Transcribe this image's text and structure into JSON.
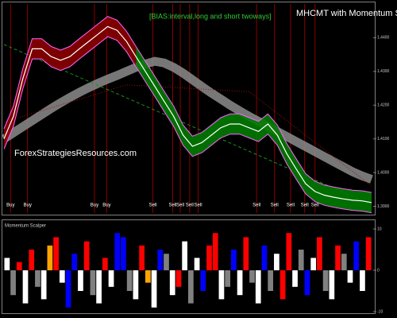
{
  "chart_data": [
    {
      "type": "line",
      "title": "MHCMT with Momentum Scalper",
      "subtitle": "[BIAS:interval,long and short twoways]",
      "watermark": "ForexStrategiesResources.com",
      "ylim": [
        1.388,
        1.45
      ],
      "yticks": [
        {
          "value": 1.39,
          "label": "1.3900"
        },
        {
          "value": 1.4,
          "label": "1.4000"
        },
        {
          "value": 1.41,
          "label": "1.4100"
        },
        {
          "value": 1.42,
          "label": "1.4200"
        },
        {
          "value": 1.43,
          "label": "1.4300"
        },
        {
          "value": 1.44,
          "label": "1.4400"
        }
      ],
      "grid": false,
      "series": [
        {
          "color": "#8c8c8c",
          "style": "band",
          "values": [
            1.41,
            1.4118,
            1.4136,
            1.4154,
            1.4172,
            1.419,
            1.4207,
            1.4223,
            1.4238,
            1.4252,
            1.4265,
            1.4277,
            1.4288,
            1.43,
            1.4312,
            1.4322,
            1.433,
            1.4325,
            1.4312,
            1.4295,
            1.4275,
            1.4255,
            1.4236,
            1.4218,
            1.42,
            1.4183,
            1.4167,
            1.4152,
            1.4137,
            1.4122,
            1.4107,
            1.4092,
            1.4077,
            1.4062,
            1.4047,
            1.4032,
            1.4017,
            1.4002,
            1.399,
            1.398
          ]
        },
        {
          "color": "#1e8c1e",
          "style": "dashed",
          "x": [
            0,
            39
          ],
          "values": [
            1.438,
            1.3905
          ]
        },
        {
          "color": "#a01010",
          "style": "dotted",
          "x": [
            0,
            13,
            26,
            39
          ],
          "values": [
            1.415,
            1.426,
            1.424,
            1.396
          ]
        },
        {
          "color": "#ffffff",
          "style": "solid",
          "values": [
            1.41,
            1.4167,
            1.4278,
            1.4367,
            1.4367,
            1.4344,
            1.4333,
            1.4344,
            1.4367,
            1.4389,
            1.4411,
            1.4433,
            1.4422,
            1.4389,
            1.4344,
            1.43,
            1.4256,
            1.4211,
            1.4167,
            1.4111,
            1.4078,
            1.4089,
            1.4111,
            1.4133,
            1.4144,
            1.4144,
            1.4133,
            1.4122,
            1.4144,
            1.4111,
            1.4056,
            1.4011,
            1.3967,
            1.3944,
            1.3933,
            1.3927,
            1.3922,
            1.3918,
            1.3916,
            1.3911
          ]
        }
      ],
      "ribbons": [
        {
          "color": "#8b0000",
          "edge": "#ff66ff",
          "upper": [
            1.413,
            1.4197,
            1.4308,
            1.4397,
            1.4397,
            1.4374,
            1.4363,
            1.4374,
            1.4397,
            1.4419,
            1.4441,
            1.4463,
            1.4452,
            1.4419,
            1.4374,
            null,
            null,
            null,
            null,
            null,
            null,
            null,
            null,
            null,
            null,
            null,
            null,
            null,
            null,
            null,
            null,
            null,
            null,
            null,
            null,
            null,
            null,
            null,
            null,
            null
          ],
          "lower": [
            1.407,
            1.4137,
            1.4248,
            1.4337,
            1.4337,
            1.4314,
            1.4303,
            1.4314,
            1.4337,
            1.4359,
            1.4381,
            1.4403,
            1.4392,
            1.4359,
            1.4314,
            null,
            null,
            null,
            null,
            null,
            null,
            null,
            null,
            null,
            null,
            null,
            null,
            null,
            null,
            null,
            null,
            null,
            null,
            null,
            null,
            null,
            null,
            null,
            null,
            null
          ]
        },
        {
          "color": "#007a00",
          "edge": "#ff66ff",
          "upper": [
            null,
            null,
            null,
            null,
            null,
            null,
            null,
            null,
            null,
            null,
            null,
            null,
            null,
            null,
            1.4374,
            1.433,
            1.4286,
            1.4241,
            1.4197,
            1.4141,
            1.4108,
            1.4119,
            1.4141,
            1.4163,
            1.4174,
            1.4174,
            1.4163,
            1.4152,
            1.4174,
            1.4141,
            1.4086,
            1.4041,
            1.3997,
            1.3974,
            1.3963,
            1.3957,
            1.3952,
            1.3948,
            1.3946,
            1.3941
          ],
          "lower": [
            null,
            null,
            null,
            null,
            null,
            null,
            null,
            null,
            null,
            null,
            null,
            null,
            null,
            null,
            1.4314,
            1.427,
            1.4226,
            1.4181,
            1.4137,
            1.4081,
            1.4048,
            1.4059,
            1.4081,
            1.4103,
            1.4114,
            1.4114,
            1.4103,
            1.4092,
            1.4114,
            1.4081,
            1.4026,
            1.3981,
            1.3937,
            1.3914,
            1.3903,
            1.3897,
            1.3892,
            1.3888,
            1.3886,
            1.3881
          ]
        }
      ],
      "signals": [
        {
          "text": "Buy",
          "x": 0.7
        },
        {
          "text": "Buy",
          "x": 2.5
        },
        {
          "text": "Buy",
          "x": 9.6
        },
        {
          "text": "Buy",
          "x": 10.9
        },
        {
          "text": "Sell",
          "x": 15.8
        },
        {
          "text": "Sell",
          "x": 17.9
        },
        {
          "text": "Sell",
          "x": 18.7
        },
        {
          "text": "Sell",
          "x": 19.7
        },
        {
          "text": "Sell",
          "x": 20.6
        },
        {
          "text": "Sell",
          "x": 26.8
        },
        {
          "text": "Sell",
          "x": 28.7
        },
        {
          "text": "Sell",
          "x": 30.4
        },
        {
          "text": "Sell",
          "x": 31.9
        },
        {
          "text": "Sell",
          "x": 33.0
        }
      ]
    },
    {
      "type": "bar",
      "title": "Momentum Scalper",
      "ylim": [
        -10,
        10
      ],
      "yticks": [
        -10,
        0,
        10
      ],
      "values": [
        3,
        -6,
        2,
        -8,
        5,
        -4,
        -7,
        6,
        8,
        -3,
        -9,
        4,
        -5,
        7,
        -6,
        -8,
        3,
        -4,
        9,
        8,
        -5,
        -7,
        6,
        -3,
        -9,
        5,
        4,
        -6,
        -4,
        7,
        -8,
        3,
        -5,
        6,
        9,
        -7,
        -4,
        5,
        -6,
        8,
        -3,
        -8,
        6,
        -5,
        4,
        -7,
        9,
        -4,
        5,
        -6,
        3,
        8,
        -5,
        -7,
        6,
        4,
        -3,
        7,
        -5,
        8
      ],
      "colors": [
        "white",
        "gray",
        "red",
        "white",
        "red",
        "gray",
        "white",
        "orange",
        "red",
        "white",
        "blue",
        "blue",
        "white",
        "red",
        "gray",
        "white",
        "red",
        "white",
        "blue",
        "blue",
        "gray",
        "white",
        "red",
        "orange",
        "white",
        "blue",
        "gray",
        "white",
        "red",
        "white",
        "gray",
        "white",
        "blue",
        "red",
        "red",
        "white",
        "gray",
        "blue",
        "white",
        "red",
        "gray",
        "white",
        "blue",
        "gray",
        "white",
        "red",
        "red",
        "white",
        "gray",
        "blue",
        "white",
        "red",
        "gray",
        "white",
        "red",
        "gray",
        "white",
        "blue",
        "white",
        "red"
      ]
    }
  ]
}
